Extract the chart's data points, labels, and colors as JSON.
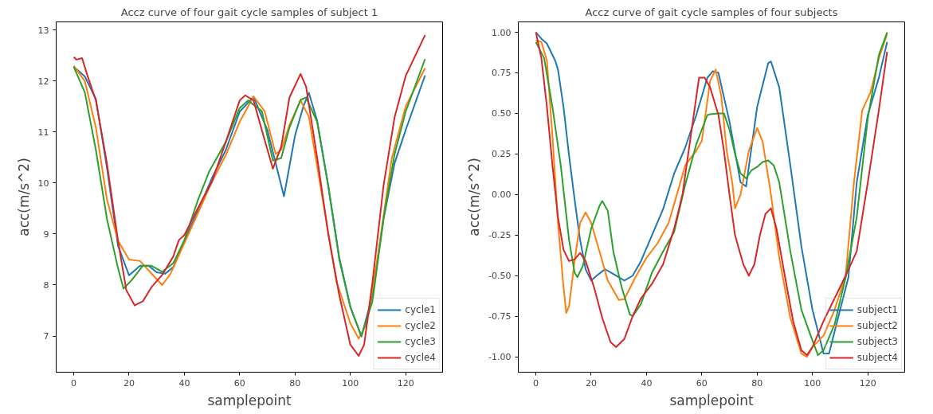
{
  "chart_data": [
    {
      "type": "line",
      "title": "Accz curve of four gait cycle samples of subject 1",
      "xlabel": "samplepoint",
      "ylabel": "acc(m/s^2)",
      "xlim": [
        -6.35,
        133.35
      ],
      "ylim": [
        6.29,
        13.16
      ],
      "xticks": [
        0,
        20,
        40,
        60,
        80,
        100,
        120
      ],
      "yticks": [
        7,
        8,
        9,
        10,
        11,
        12,
        13
      ],
      "grid": false,
      "legend": "bottom right",
      "line_style": "solid",
      "marker": "none",
      "series": [
        {
          "name": "cycle1",
          "color": "#1f77b4",
          "x": [
            0,
            4,
            8,
            12,
            16,
            20,
            24,
            27,
            30,
            33,
            36,
            40,
            45,
            50,
            55,
            60,
            65,
            70,
            73,
            76,
            80,
            83,
            85,
            88,
            92,
            96,
            100,
            104,
            108,
            112,
            116,
            120,
            127
          ],
          "values": [
            12.28,
            12.09,
            11.65,
            10.3,
            8.77,
            8.19,
            8.38,
            8.38,
            8.25,
            8.22,
            8.35,
            8.87,
            9.47,
            10.1,
            10.65,
            11.4,
            11.69,
            11.04,
            10.39,
            9.74,
            10.93,
            11.5,
            11.77,
            11.22,
            9.95,
            8.54,
            7.57,
            6.99,
            7.8,
            9.3,
            10.39,
            11.04,
            12.11
          ]
        },
        {
          "name": "cycle2",
          "color": "#ff7f0e",
          "x": [
            0,
            4,
            8,
            12,
            16,
            20,
            24,
            28,
            32,
            35,
            40,
            45,
            50,
            55,
            60,
            65,
            69,
            73,
            75,
            78,
            82,
            85,
            90,
            95,
            100,
            103,
            106,
            110,
            115,
            120,
            127
          ],
          "values": [
            12.3,
            12.0,
            11.09,
            9.68,
            8.87,
            8.5,
            8.47,
            8.23,
            8.0,
            8.22,
            8.82,
            9.42,
            10.03,
            10.55,
            11.2,
            11.7,
            11.41,
            10.57,
            10.65,
            11.14,
            11.62,
            11.3,
            9.68,
            8.06,
            7.25,
            6.95,
            7.25,
            8.6,
            10.49,
            11.5,
            12.25
          ]
        },
        {
          "name": "cycle3",
          "color": "#2ca02c",
          "x": [
            0,
            4,
            8,
            12,
            16,
            18,
            21,
            25,
            28,
            32,
            36,
            40,
            45,
            49,
            55,
            60,
            63,
            68,
            72,
            75,
            78,
            82,
            84,
            88,
            92,
            96,
            100,
            104,
            108,
            112,
            116,
            120,
            127
          ],
          "values": [
            12.28,
            11.78,
            10.65,
            9.3,
            8.33,
            7.93,
            8.1,
            8.38,
            8.38,
            8.26,
            8.43,
            8.88,
            9.68,
            10.23,
            10.81,
            11.47,
            11.62,
            11.41,
            10.44,
            10.49,
            11.09,
            11.63,
            11.68,
            11.2,
            9.95,
            8.5,
            7.57,
            7.0,
            7.68,
            9.3,
            10.57,
            11.4,
            12.43
          ]
        },
        {
          "name": "cycle4",
          "color": "#d62728",
          "x": [
            0,
            1,
            3,
            5,
            8,
            12,
            16,
            19,
            22,
            25,
            28,
            32,
            36,
            38,
            40,
            45,
            50,
            55,
            60,
            62,
            65,
            68,
            72,
            75,
            78,
            82,
            84,
            88,
            92,
            96,
            100,
            103,
            105,
            108,
            112,
            116,
            120,
            127
          ],
          "values": [
            12.47,
            12.42,
            12.45,
            12.1,
            11.62,
            10.39,
            8.87,
            7.9,
            7.6,
            7.68,
            7.95,
            8.2,
            8.56,
            8.88,
            8.98,
            9.52,
            10.03,
            10.81,
            11.62,
            11.72,
            11.62,
            11.04,
            10.28,
            10.71,
            11.68,
            12.14,
            11.89,
            10.5,
            9.0,
            7.8,
            6.83,
            6.61,
            6.83,
            8.06,
            9.95,
            11.29,
            12.1,
            12.9
          ]
        }
      ]
    },
    {
      "type": "line",
      "title": "Accz curve of gait cycle samples of four subjects",
      "xlabel": "samplepoint",
      "ylabel": "acc(m/s^2)",
      "xlim": [
        -6.35,
        133.35
      ],
      "ylim": [
        -1.095,
        1.064
      ],
      "xticks": [
        0,
        20,
        40,
        60,
        80,
        100,
        120
      ],
      "yticks": [
        {
          "value": -1,
          "label": "-1.00"
        },
        {
          "value": -0.75,
          "label": "-0.75"
        },
        {
          "value": -0.5,
          "label": "-0.50"
        },
        {
          "value": -0.25,
          "label": "-0.25"
        },
        {
          "value": 0,
          "label": "0.00"
        },
        {
          "value": 0.25,
          "label": "0.25"
        },
        {
          "value": 0.5,
          "label": "0.50"
        },
        {
          "value": 0.75,
          "label": "0.75"
        },
        {
          "value": 1,
          "label": "1.00"
        }
      ],
      "grid": false,
      "legend": "bottom right",
      "line_style": "solid",
      "marker": "none",
      "series": [
        {
          "name": "subject1",
          "color": "#1f77b4",
          "x": [
            0,
            2,
            4,
            7,
            8,
            10,
            12,
            14,
            16,
            18,
            20,
            22,
            25,
            28,
            32,
            35,
            38,
            42,
            46,
            50,
            54,
            58,
            62,
            64,
            66,
            70,
            74,
            76,
            80,
            84,
            85,
            88,
            92,
            96,
            100,
            104,
            106,
            110,
            113,
            116,
            120,
            124,
            127
          ],
          "values": [
            1.0,
            0.96,
            0.93,
            0.825,
            0.77,
            0.54,
            0.24,
            -0.03,
            -0.28,
            -0.46,
            -0.53,
            -0.5,
            -0.46,
            -0.49,
            -0.53,
            -0.5,
            -0.41,
            -0.25,
            -0.09,
            0.13,
            0.29,
            0.49,
            0.72,
            0.76,
            0.75,
            0.45,
            0.075,
            0.05,
            0.54,
            0.81,
            0.82,
            0.66,
            0.18,
            -0.32,
            -0.71,
            -0.98,
            -0.98,
            -0.71,
            -0.51,
            0.075,
            0.49,
            0.72,
            0.94
          ]
        },
        {
          "name": "subject2",
          "color": "#ff7f0e",
          "x": [
            0,
            2,
            4,
            6,
            8,
            10,
            11,
            12,
            14,
            16,
            18,
            20,
            23,
            26,
            30,
            32,
            36,
            40,
            44,
            48,
            52,
            54,
            58,
            60,
            63,
            65,
            67,
            69,
            71,
            72,
            74,
            77,
            80,
            82,
            85,
            88,
            92,
            96,
            98,
            100,
            104,
            108,
            112,
            115,
            118,
            121,
            124,
            127
          ],
          "values": [
            0.95,
            0.94,
            0.825,
            0.36,
            -0.175,
            -0.57,
            -0.73,
            -0.69,
            -0.41,
            -0.175,
            -0.11,
            -0.175,
            -0.35,
            -0.53,
            -0.65,
            -0.645,
            -0.51,
            -0.39,
            -0.3,
            -0.175,
            0.06,
            0.18,
            0.27,
            0.33,
            0.7,
            0.77,
            0.61,
            0.27,
            0.075,
            -0.085,
            0.0,
            0.27,
            0.41,
            0.325,
            0.0,
            -0.39,
            -0.76,
            -0.98,
            -1.0,
            -0.94,
            -0.87,
            -0.71,
            -0.5,
            0.075,
            0.52,
            0.63,
            0.84,
            0.99
          ]
        },
        {
          "name": "subject3",
          "color": "#2ca02c",
          "x": [
            0,
            3,
            6,
            9,
            12,
            14,
            15,
            17,
            20,
            23,
            24,
            26,
            28,
            31,
            34,
            35,
            38,
            42,
            46,
            50,
            54,
            58,
            62,
            63,
            66,
            68,
            70,
            72,
            74,
            76,
            78,
            80,
            82,
            84,
            86,
            88,
            92,
            96,
            100,
            102,
            104,
            108,
            112,
            116,
            120,
            124,
            127
          ],
          "values": [
            0.94,
            0.84,
            0.54,
            0.18,
            -0.28,
            -0.48,
            -0.51,
            -0.44,
            -0.21,
            -0.07,
            -0.04,
            -0.1,
            -0.35,
            -0.57,
            -0.74,
            -0.75,
            -0.675,
            -0.48,
            -0.35,
            -0.23,
            0.06,
            0.31,
            0.49,
            0.495,
            0.5,
            0.5,
            0.4,
            0.25,
            0.13,
            0.1,
            0.15,
            0.17,
            0.2,
            0.21,
            0.18,
            0.075,
            -0.35,
            -0.71,
            -0.9,
            -0.99,
            -0.96,
            -0.8,
            -0.51,
            -0.14,
            0.47,
            0.86,
            1.0
          ]
        },
        {
          "name": "subject4",
          "color": "#d62728",
          "x": [
            0,
            2,
            4,
            6,
            8,
            10,
            12,
            14,
            16,
            18,
            21,
            24,
            27,
            29,
            32,
            35,
            38,
            42,
            46,
            50,
            53,
            56,
            59,
            61,
            63,
            66,
            68,
            70,
            72,
            75,
            77,
            79,
            81,
            83,
            85,
            87,
            90,
            93,
            96,
            98,
            100,
            104,
            108,
            112,
            116,
            120,
            124,
            127
          ],
          "values": [
            1.0,
            0.84,
            0.54,
            0.18,
            -0.14,
            -0.34,
            -0.41,
            -0.4,
            -0.36,
            -0.41,
            -0.57,
            -0.76,
            -0.91,
            -0.94,
            -0.89,
            -0.75,
            -0.64,
            -0.55,
            -0.43,
            -0.21,
            0.0,
            0.36,
            0.72,
            0.72,
            0.66,
            0.49,
            0.27,
            0.0,
            -0.25,
            -0.43,
            -0.5,
            -0.43,
            -0.25,
            -0.12,
            -0.085,
            -0.21,
            -0.5,
            -0.78,
            -0.96,
            -0.99,
            -0.94,
            -0.78,
            -0.64,
            -0.5,
            -0.35,
            0.075,
            0.52,
            0.88
          ]
        }
      ]
    }
  ]
}
